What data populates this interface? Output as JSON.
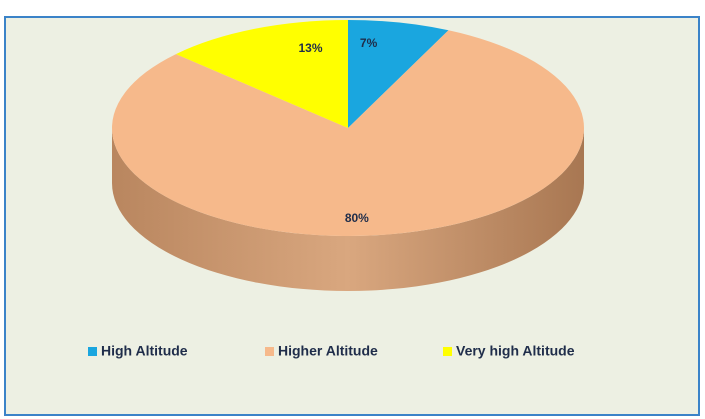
{
  "chart_data": {
    "type": "pie",
    "categories": [
      "High Altitude",
      "Higher Altitude",
      "Very high Altitude"
    ],
    "values": [
      7,
      80,
      13
    ],
    "value_labels": [
      "7%",
      "80%",
      "13%"
    ],
    "colors": [
      "#1aa6df",
      "#f6b98b",
      "#ffff00"
    ],
    "legend": "bottom"
  }
}
